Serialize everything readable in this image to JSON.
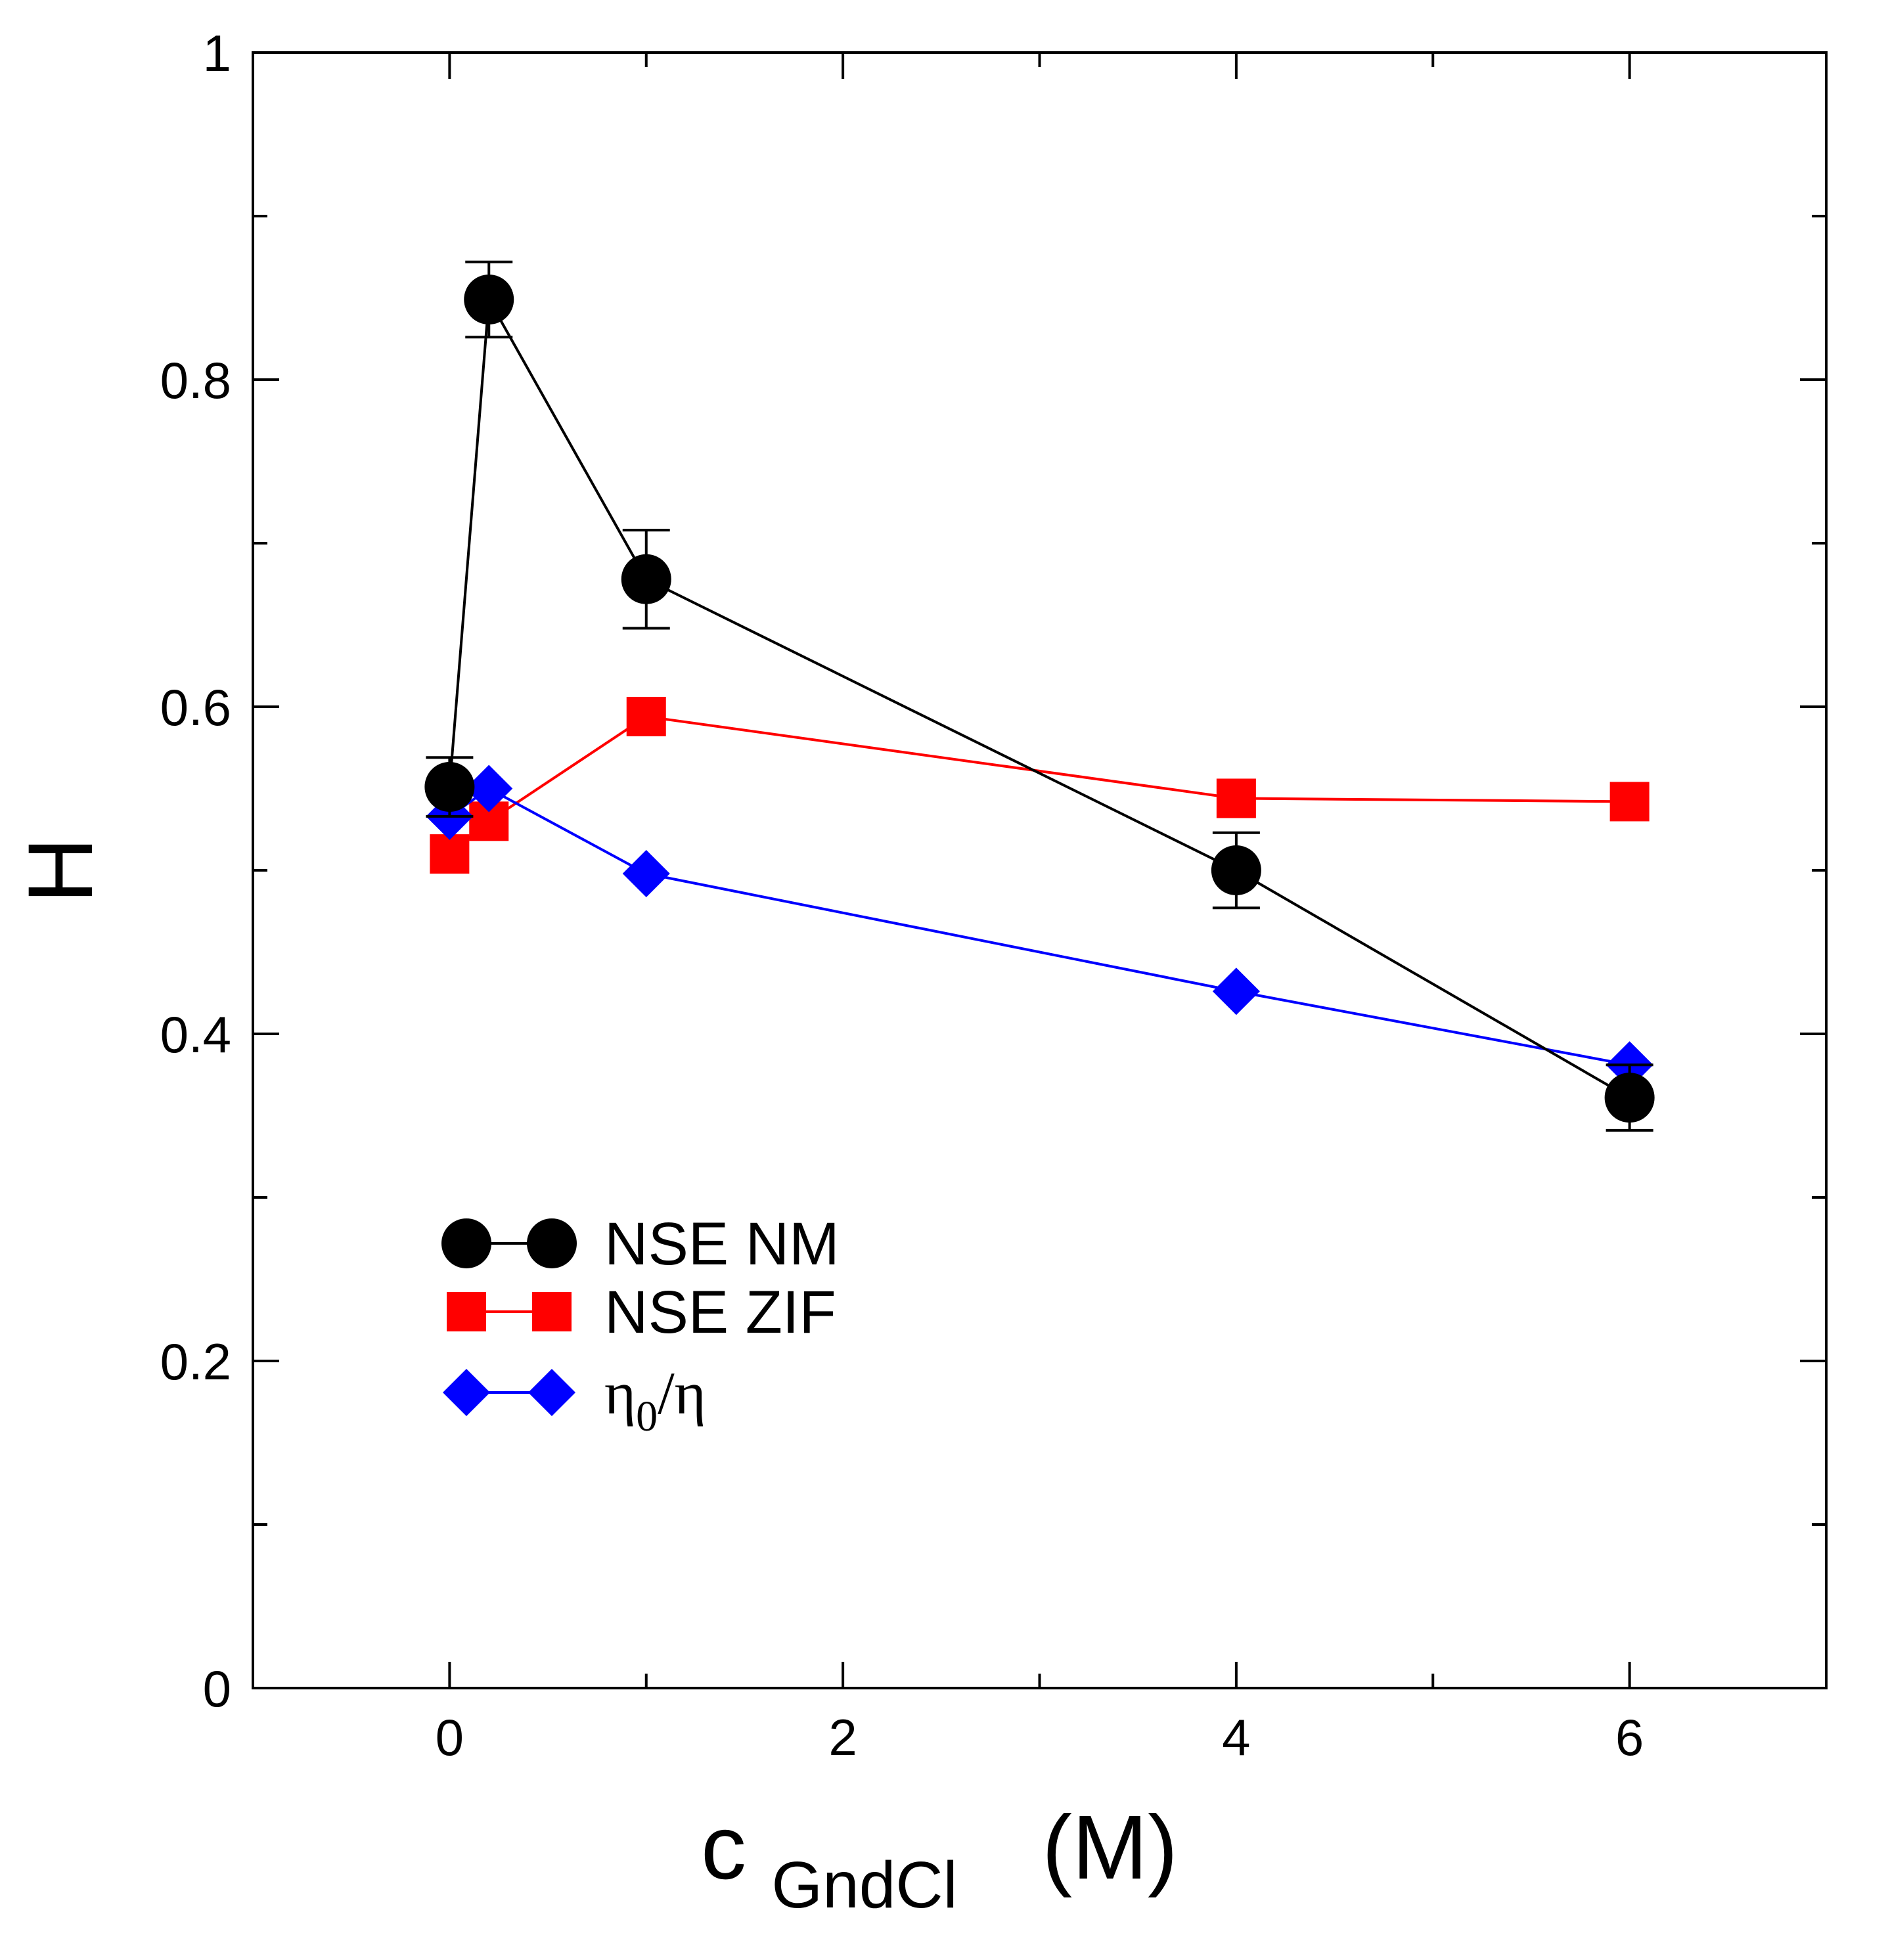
{
  "chart_data": {
    "type": "line",
    "title": "",
    "xlabel": {
      "main": "c",
      "subscript": "GndCl",
      "unit": "(M)"
    },
    "ylabel": "H",
    "xlim": [
      -1,
      7
    ],
    "ylim": [
      0,
      1
    ],
    "x_ticks": [
      0,
      2,
      4,
      6
    ],
    "x_tick_labels": [
      "0",
      "2",
      "4",
      "6"
    ],
    "x_minor_ticks": [
      1,
      3,
      5
    ],
    "y_ticks": [
      0,
      0.2,
      0.4,
      0.6,
      0.8,
      1
    ],
    "y_tick_labels": [
      "0",
      "0.2",
      "0.4",
      "0.6",
      "0.8",
      "1"
    ],
    "y_minor_ticks": [
      0.1,
      0.3,
      0.5,
      0.7,
      0.9
    ],
    "grid": false,
    "legend_position": "lower-left",
    "series": [
      {
        "name": "NSE NM",
        "color": "#000000",
        "marker": "circle",
        "x": [
          0,
          0.2,
          1,
          4,
          6
        ],
        "y": [
          0.551,
          0.849,
          0.678,
          0.5,
          0.361
        ],
        "yerr": [
          0.018,
          0.023,
          0.03,
          0.023,
          0.02
        ]
      },
      {
        "name": "NSE ZIF",
        "color": "#ff0000",
        "marker": "square",
        "x": [
          0,
          0.2,
          1,
          4,
          6
        ],
        "y": [
          0.51,
          0.53,
          0.594,
          0.544,
          0.542
        ]
      },
      {
        "name": "η0/η",
        "name_parts": {
          "base": "η",
          "subscript": "0",
          "tail": "/η"
        },
        "color": "#0000ff",
        "marker": "diamond",
        "x": [
          0,
          0.2,
          1,
          4,
          6
        ],
        "y": [
          0.533,
          0.55,
          0.498,
          0.426,
          0.381
        ]
      }
    ]
  }
}
